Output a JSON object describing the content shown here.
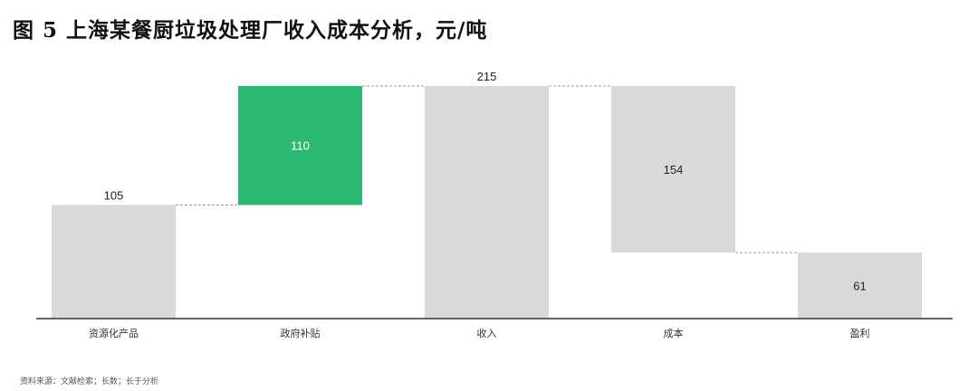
{
  "title": "图 5 上海某餐厨垃圾处理厂收入成本分析，元/吨",
  "source": "资料来源：文献检索；长数；长于分析",
  "chart_data": {
    "type": "waterfall",
    "categories": [
      "资源化产品",
      "政府补贴",
      "收入",
      "成本",
      "盈利"
    ],
    "values": [
      105,
      110,
      215,
      -154,
      61
    ],
    "kinds": [
      "total",
      "increase",
      "total",
      "decrease",
      "total"
    ],
    "labels": [
      "105",
      "110",
      "215",
      "154",
      "61"
    ],
    "ylim": [
      0,
      215
    ],
    "grid": false,
    "colors": {
      "total": "#D9D9D9",
      "increase": "#2DB872",
      "decrease": "#D9D9D9"
    }
  }
}
